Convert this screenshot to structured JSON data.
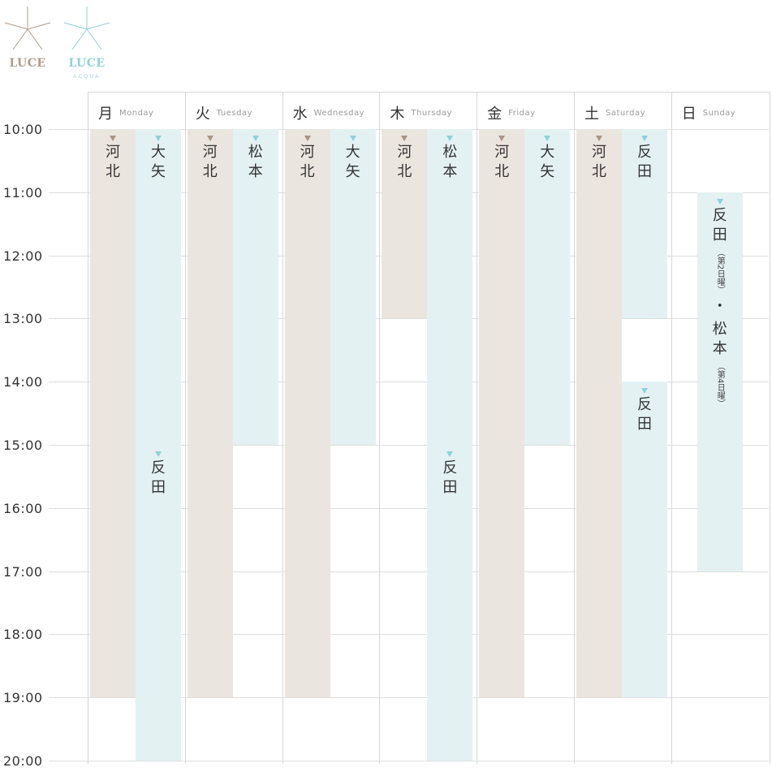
{
  "logos": [
    {
      "name": "LUCE",
      "sub": "",
      "color": "#b09a8a"
    },
    {
      "name": "LUCE",
      "sub": "ACQUA",
      "color": "#8fd0dc"
    }
  ],
  "colors": {
    "beige": "#ebe5e0",
    "blue": "#e3f1f3",
    "beige_marker": "#a89486",
    "blue_marker": "#8fd0dc"
  },
  "times": [
    "10:00",
    "11:00",
    "12:00",
    "13:00",
    "14:00",
    "15:00",
    "16:00",
    "17:00",
    "18:00",
    "19:00",
    "20:00"
  ],
  "days": [
    {
      "kanji": "月",
      "en": "Monday"
    },
    {
      "kanji": "火",
      "en": "Tuesday"
    },
    {
      "kanji": "水",
      "en": "Wednesday"
    },
    {
      "kanji": "木",
      "en": "Thursday"
    },
    {
      "kanji": "金",
      "en": "Friday"
    },
    {
      "kanji": "土",
      "en": "Saturday"
    },
    {
      "kanji": "日",
      "en": "Sunday"
    }
  ],
  "shifts": [
    {
      "day": 0,
      "lane": 0,
      "color": "beige",
      "start": 10,
      "end": 19,
      "labels": [
        {
          "at": 10,
          "name": "河北"
        }
      ]
    },
    {
      "day": 0,
      "lane": 1,
      "color": "blue",
      "start": 10,
      "end": 20,
      "labels": [
        {
          "at": 10,
          "name": "大矢"
        },
        {
          "at": 15,
          "name": "反田"
        }
      ]
    },
    {
      "day": 1,
      "lane": 0,
      "color": "beige",
      "start": 10,
      "end": 19,
      "labels": [
        {
          "at": 10,
          "name": "河北"
        }
      ]
    },
    {
      "day": 1,
      "lane": 1,
      "color": "blue",
      "start": 10,
      "end": 15,
      "labels": [
        {
          "at": 10,
          "name": "松本"
        }
      ]
    },
    {
      "day": 2,
      "lane": 0,
      "color": "beige",
      "start": 10,
      "end": 19,
      "labels": [
        {
          "at": 10,
          "name": "河北"
        }
      ]
    },
    {
      "day": 2,
      "lane": 1,
      "color": "blue",
      "start": 10,
      "end": 15,
      "labels": [
        {
          "at": 10,
          "name": "大矢"
        }
      ]
    },
    {
      "day": 3,
      "lane": 0,
      "color": "beige",
      "start": 10,
      "end": 13,
      "labels": [
        {
          "at": 10,
          "name": "河北"
        }
      ]
    },
    {
      "day": 3,
      "lane": 1,
      "color": "blue",
      "start": 10,
      "end": 20,
      "labels": [
        {
          "at": 10,
          "name": "松本"
        },
        {
          "at": 15,
          "name": "反田"
        }
      ]
    },
    {
      "day": 4,
      "lane": 0,
      "color": "beige",
      "start": 10,
      "end": 19,
      "labels": [
        {
          "at": 10,
          "name": "河北"
        }
      ]
    },
    {
      "day": 4,
      "lane": 1,
      "color": "blue",
      "start": 10,
      "end": 15,
      "labels": [
        {
          "at": 10,
          "name": "大矢"
        }
      ]
    },
    {
      "day": 5,
      "lane": 0,
      "color": "beige",
      "start": 10,
      "end": 19,
      "labels": [
        {
          "at": 10,
          "name": "河北"
        }
      ]
    },
    {
      "day": 5,
      "lane": 1,
      "color": "blue",
      "start": 10,
      "end": 13,
      "labels": [
        {
          "at": 10,
          "name": "反田"
        }
      ]
    },
    {
      "day": 5,
      "lane": 1,
      "color": "blue",
      "start": 14,
      "end": 19,
      "labels": [
        {
          "at": 14,
          "name": "反田"
        }
      ]
    },
    {
      "day": 6,
      "lane": 1,
      "color": "blue",
      "start": 11,
      "end": 17,
      "labels": [
        {
          "at": 11,
          "name": "反田",
          "note": "（第2日曜）",
          "sep": "・",
          "name2": "松本",
          "note2": "（第4日曜）"
        }
      ]
    }
  ]
}
